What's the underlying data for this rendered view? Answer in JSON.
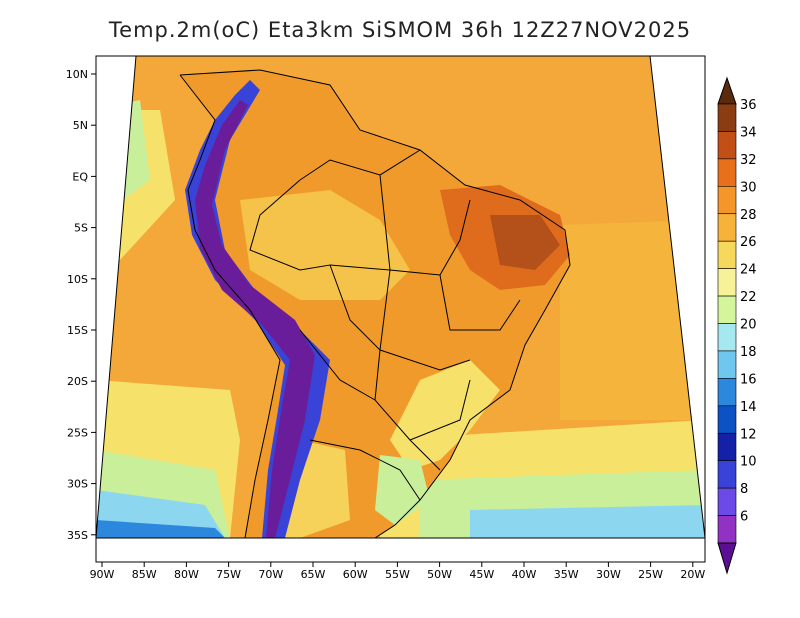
{
  "title": "Temp.2m(oC) Eta3km SiSMOM 36h 12Z27NOV2025",
  "lat_labels": [
    "10N",
    "5N",
    "EQ",
    "5S",
    "10S",
    "15S",
    "20S",
    "25S",
    "30S",
    "35S"
  ],
  "lon_labels": [
    "90W",
    "85W",
    "80W",
    "75W",
    "70W",
    "65W",
    "60W",
    "55W",
    "50W",
    "45W",
    "40W",
    "35W",
    "30W",
    "25W",
    "20W"
  ],
  "colorbar": {
    "labels": [
      "36",
      "34",
      "32",
      "30",
      "28",
      "26",
      "24",
      "22",
      "20",
      "18",
      "16",
      "14",
      "12",
      "10",
      "8",
      "6"
    ],
    "colors": [
      "#5a2a0e",
      "#8a3d12",
      "#c14f16",
      "#e8701a",
      "#f5962a",
      "#f7b23a",
      "#f5d85c",
      "#f7f29a",
      "#d4f59c",
      "#a6e8ef",
      "#6fc6ee",
      "#2c88dc",
      "#0d52c5",
      "#1520a8",
      "#3a43d8",
      "#6b4ae8",
      "#9132c4",
      "#5b0f94"
    ]
  },
  "palette": {
    "sea": "#f4a83a",
    "land_warm": "#f09a2c",
    "land_hot": "#de6c1c",
    "cool_yellow": "#f6e26a",
    "cool_green": "#c9ef9a",
    "cool_cyan": "#8dd6ef",
    "andes": "#6a1d9a",
    "border": "#000000"
  }
}
